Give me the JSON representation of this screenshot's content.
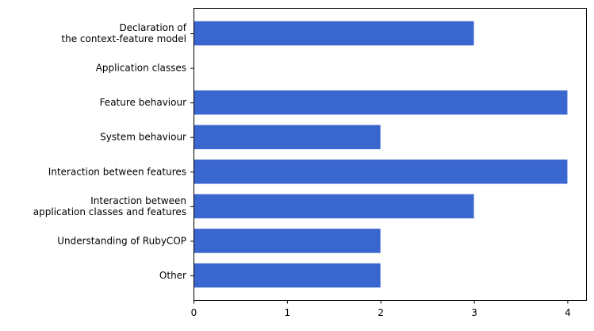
{
  "chart_data": {
    "type": "bar",
    "orientation": "horizontal",
    "title": "",
    "xlabel": "",
    "ylabel": "",
    "categories": [
      [
        "Declaration of",
        "the context-feature model"
      ],
      [
        "Application classes"
      ],
      [
        "Feature behaviour"
      ],
      [
        "System behaviour"
      ],
      [
        "Interaction between features"
      ],
      [
        "Interaction between",
        "application classes and features"
      ],
      [
        "Understanding of RubyCOP"
      ],
      [
        "Other"
      ]
    ],
    "values": [
      3,
      0,
      4,
      2,
      4,
      3,
      2,
      2
    ],
    "xlim": [
      0,
      4.2
    ],
    "xticks": [
      0,
      1,
      2,
      3,
      4
    ],
    "grid": false,
    "legend": "none",
    "bar_color": "#3a66cf"
  }
}
